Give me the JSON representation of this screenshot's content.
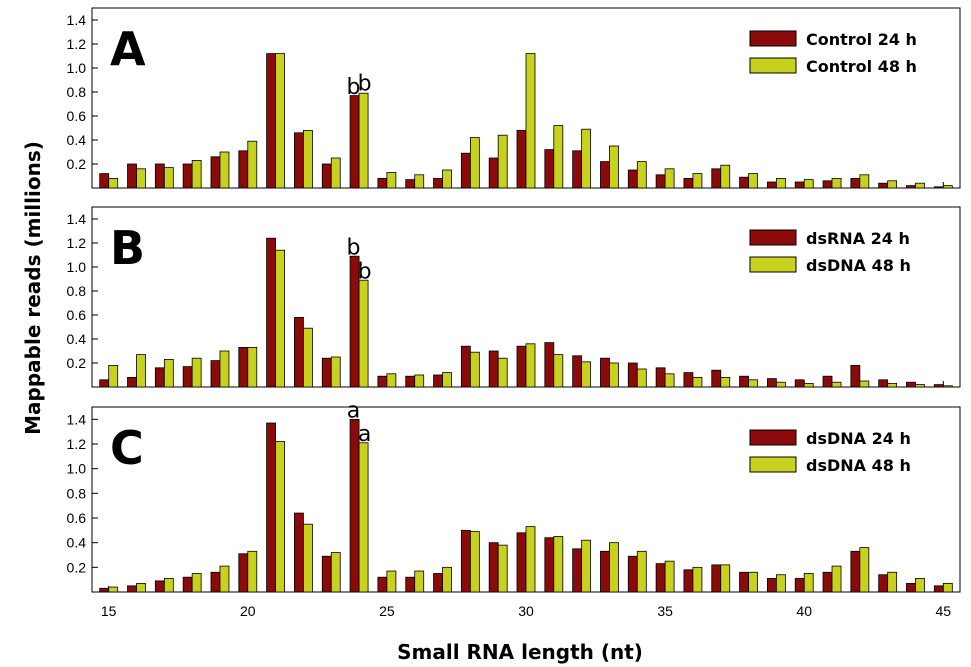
{
  "chart_data": {
    "type": "bar",
    "xlabel": "Small RNA length (nt)",
    "ylabel": "Mappable reads (millions)",
    "x_ticks": [
      "15",
      "20",
      "25",
      "30",
      "35",
      "40",
      "45"
    ],
    "y_ticks": [
      "0.2",
      "0.4",
      "0.6",
      "0.8",
      "1.0",
      "1.2",
      "1.4"
    ],
    "ylim": [
      0,
      1.5
    ],
    "xlim": [
      14.4,
      45.6
    ],
    "colors": {
      "series1": "#8b0a0a",
      "series2": "#c8d21e"
    },
    "categories": [
      15,
      16,
      17,
      18,
      19,
      20,
      21,
      22,
      23,
      24,
      25,
      26,
      27,
      28,
      29,
      30,
      31,
      32,
      33,
      34,
      35,
      36,
      37,
      38,
      39,
      40,
      41,
      42,
      43,
      44,
      45
    ],
    "panels": [
      {
        "letter": "A",
        "series": [
          {
            "name": "Control 24 h",
            "values": [
              0.12,
              0.2,
              0.2,
              0.2,
              0.26,
              0.31,
              1.12,
              0.46,
              0.2,
              0.77,
              0.08,
              0.07,
              0.08,
              0.29,
              0.25,
              0.48,
              0.32,
              0.31,
              0.22,
              0.15,
              0.11,
              0.08,
              0.16,
              0.09,
              0.05,
              0.05,
              0.06,
              0.08,
              0.04,
              0.02,
              0.01
            ]
          },
          {
            "name": "Control 48 h",
            "values": [
              0.08,
              0.16,
              0.17,
              0.23,
              0.3,
              0.39,
              1.12,
              0.48,
              0.25,
              0.79,
              0.13,
              0.11,
              0.15,
              0.42,
              0.44,
              1.12,
              0.52,
              0.49,
              0.35,
              0.22,
              0.16,
              0.12,
              0.19,
              0.12,
              0.08,
              0.07,
              0.08,
              0.11,
              0.06,
              0.04,
              0.02
            ]
          }
        ],
        "annotations": [
          {
            "text": "b",
            "x": 23.8,
            "y": 0.8
          },
          {
            "text": "b",
            "x": 24.2,
            "y": 0.83
          }
        ]
      },
      {
        "letter": "B",
        "series": [
          {
            "name": "dsRNA 24 h",
            "values": [
              0.06,
              0.08,
              0.16,
              0.17,
              0.22,
              0.33,
              1.24,
              0.58,
              0.24,
              1.09,
              0.09,
              0.09,
              0.1,
              0.34,
              0.3,
              0.34,
              0.37,
              0.26,
              0.24,
              0.2,
              0.16,
              0.12,
              0.14,
              0.09,
              0.07,
              0.06,
              0.09,
              0.18,
              0.06,
              0.04,
              0.02
            ]
          },
          {
            "name": "dsDNA 48 h",
            "values": [
              0.18,
              0.27,
              0.23,
              0.24,
              0.3,
              0.33,
              1.14,
              0.49,
              0.25,
              0.89,
              0.11,
              0.1,
              0.12,
              0.29,
              0.24,
              0.36,
              0.27,
              0.21,
              0.2,
              0.15,
              0.11,
              0.08,
              0.08,
              0.06,
              0.04,
              0.03,
              0.04,
              0.05,
              0.03,
              0.02,
              0.01
            ]
          }
        ],
        "annotations": [
          {
            "text": "b",
            "x": 23.8,
            "y": 1.12
          },
          {
            "text": "b",
            "x": 24.2,
            "y": 0.92
          }
        ]
      },
      {
        "letter": "C",
        "series": [
          {
            "name": "dsDNA 24 h",
            "values": [
              0.03,
              0.05,
              0.09,
              0.12,
              0.16,
              0.31,
              1.37,
              0.64,
              0.29,
              1.4,
              0.12,
              0.12,
              0.15,
              0.5,
              0.4,
              0.48,
              0.44,
              0.35,
              0.33,
              0.29,
              0.23,
              0.18,
              0.22,
              0.16,
              0.11,
              0.11,
              0.16,
              0.33,
              0.14,
              0.07,
              0.05
            ]
          },
          {
            "name": "dsDNA 48 h",
            "values": [
              0.04,
              0.07,
              0.11,
              0.15,
              0.21,
              0.33,
              1.22,
              0.55,
              0.32,
              1.21,
              0.17,
              0.17,
              0.2,
              0.49,
              0.38,
              0.53,
              0.45,
              0.42,
              0.4,
              0.33,
              0.25,
              0.2,
              0.22,
              0.16,
              0.14,
              0.15,
              0.21,
              0.36,
              0.16,
              0.11,
              0.07
            ]
          }
        ],
        "annotations": [
          {
            "text": "a",
            "x": 23.8,
            "y": 1.43
          },
          {
            "text": "a",
            "x": 24.2,
            "y": 1.24
          }
        ]
      }
    ]
  }
}
